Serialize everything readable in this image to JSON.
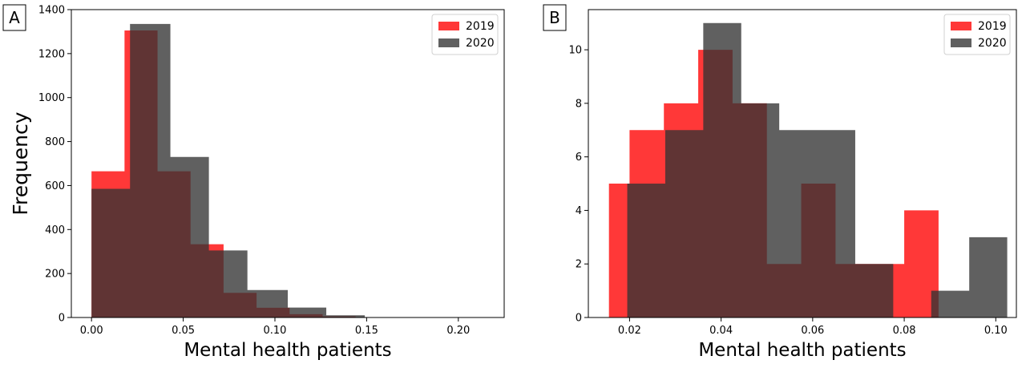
{
  "chart_data": [
    {
      "type": "bar",
      "panel_label": "A",
      "xlabel": "Mental health patients",
      "ylabel": "Frequency",
      "xlim": [
        -0.011,
        0.225
      ],
      "ylim": [
        0,
        1400
      ],
      "xticks": [
        0.0,
        0.05,
        0.1,
        0.15,
        0.2
      ],
      "xtick_labels": [
        "0.00",
        "0.05",
        "0.10",
        "0.15",
        "0.20"
      ],
      "yticks": [
        0,
        200,
        400,
        600,
        800,
        1000,
        1200,
        1400
      ],
      "ytick_labels": [
        "0",
        "200",
        "400",
        "600",
        "800",
        "1000",
        "1200",
        "1400"
      ],
      "legend_position": "top-right",
      "grid": false,
      "series": [
        {
          "name": "2019",
          "color": "#ff0000",
          "bins": [
            {
              "x0": 0.0,
              "x1": 0.018,
              "count": 665
            },
            {
              "x0": 0.018,
              "x1": 0.036,
              "count": 1305
            },
            {
              "x0": 0.036,
              "x1": 0.054,
              "count": 665
            },
            {
              "x0": 0.054,
              "x1": 0.072,
              "count": 333
            },
            {
              "x0": 0.072,
              "x1": 0.09,
              "count": 112
            },
            {
              "x0": 0.09,
              "x1": 0.108,
              "count": 44
            },
            {
              "x0": 0.108,
              "x1": 0.126,
              "count": 15
            },
            {
              "x0": 0.126,
              "x1": 0.144,
              "count": 5
            },
            {
              "x0": 0.144,
              "x1": 0.162,
              "count": 2
            },
            {
              "x0": 0.162,
              "x1": 0.18,
              "count": 1
            },
            {
              "x0": 0.18,
              "x1": 0.198,
              "count": 1
            },
            {
              "x0": 0.198,
              "x1": 0.216,
              "count": 1
            }
          ]
        },
        {
          "name": "2020",
          "color": "#333333",
          "bins": [
            {
              "x0": 0.0,
              "x1": 0.021,
              "count": 585
            },
            {
              "x0": 0.021,
              "x1": 0.043,
              "count": 1335
            },
            {
              "x0": 0.043,
              "x1": 0.064,
              "count": 730
            },
            {
              "x0": 0.064,
              "x1": 0.085,
              "count": 305
            },
            {
              "x0": 0.085,
              "x1": 0.107,
              "count": 125
            },
            {
              "x0": 0.107,
              "x1": 0.128,
              "count": 45
            },
            {
              "x0": 0.128,
              "x1": 0.149,
              "count": 10
            },
            {
              "x0": 0.149,
              "x1": 0.171,
              "count": 2
            },
            {
              "x0": 0.171,
              "x1": 0.192,
              "count": 1
            },
            {
              "x0": 0.192,
              "x1": 0.213,
              "count": 1
            }
          ]
        }
      ]
    },
    {
      "type": "bar",
      "panel_label": "B",
      "xlabel": "Mental health patients",
      "ylabel": "",
      "xlim": [
        0.011,
        0.1045
      ],
      "ylim": [
        0,
        11.5
      ],
      "xticks": [
        0.02,
        0.04,
        0.06,
        0.08,
        0.1
      ],
      "xtick_labels": [
        "0.02",
        "0.04",
        "0.06",
        "0.08",
        "0.10"
      ],
      "yticks": [
        0,
        2,
        4,
        6,
        8,
        10
      ],
      "ytick_labels": [
        "0",
        "2",
        "4",
        "6",
        "8",
        "10"
      ],
      "legend_position": "top-right",
      "grid": false,
      "series": [
        {
          "name": "2019",
          "color": "#ff0000",
          "bins": [
            {
              "x0": 0.0155,
              "x1": 0.02,
              "count": 5
            },
            {
              "x0": 0.02,
              "x1": 0.0275,
              "count": 7
            },
            {
              "x0": 0.0275,
              "x1": 0.035,
              "count": 8
            },
            {
              "x0": 0.035,
              "x1": 0.0425,
              "count": 10
            },
            {
              "x0": 0.0425,
              "x1": 0.05,
              "count": 8
            },
            {
              "x0": 0.05,
              "x1": 0.0575,
              "count": 2
            },
            {
              "x0": 0.0575,
              "x1": 0.065,
              "count": 5
            },
            {
              "x0": 0.065,
              "x1": 0.0725,
              "count": 2
            },
            {
              "x0": 0.0725,
              "x1": 0.08,
              "count": 2
            },
            {
              "x0": 0.08,
              "x1": 0.0875,
              "count": 4
            }
          ]
        },
        {
          "name": "2020",
          "color": "#333333",
          "bins": [
            {
              "x0": 0.0195,
              "x1": 0.0278,
              "count": 5
            },
            {
              "x0": 0.0278,
              "x1": 0.0361,
              "count": 7
            },
            {
              "x0": 0.0361,
              "x1": 0.0444,
              "count": 11
            },
            {
              "x0": 0.0444,
              "x1": 0.0527,
              "count": 8
            },
            {
              "x0": 0.0527,
              "x1": 0.061,
              "count": 7
            },
            {
              "x0": 0.061,
              "x1": 0.0693,
              "count": 7
            },
            {
              "x0": 0.0693,
              "x1": 0.0776,
              "count": 2
            },
            {
              "x0": 0.0776,
              "x1": 0.0859,
              "count": 0
            },
            {
              "x0": 0.0859,
              "x1": 0.0942,
              "count": 1
            },
            {
              "x0": 0.0942,
              "x1": 0.1025,
              "count": 3
            }
          ]
        }
      ]
    }
  ]
}
